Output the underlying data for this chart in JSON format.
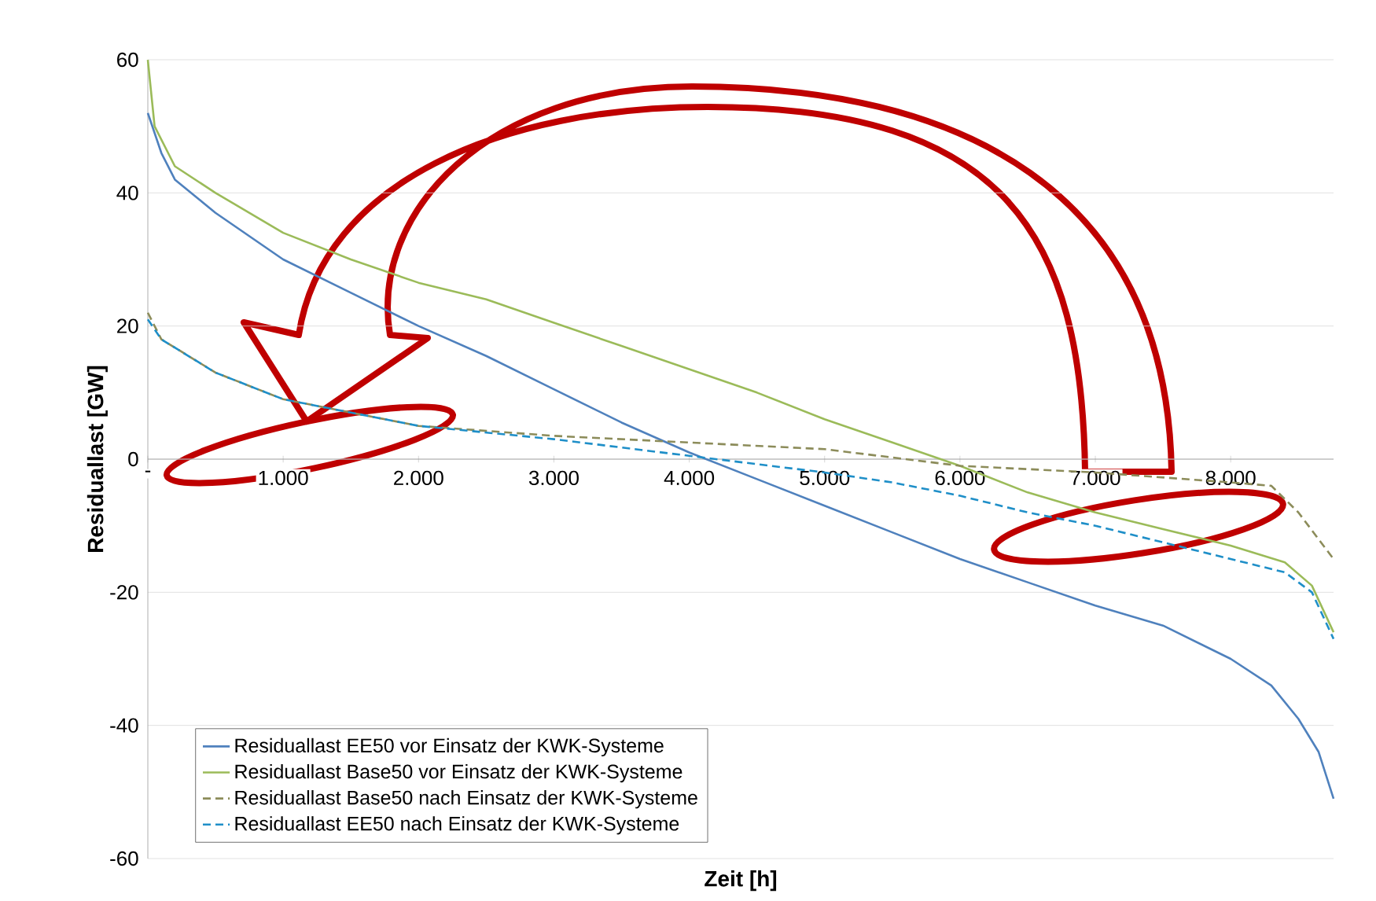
{
  "chart_data": {
    "type": "line",
    "xlabel": "Zeit [h]",
    "ylabel": "Residuallast  [GW]",
    "xlim": [
      0,
      8760
    ],
    "ylim": [
      -60,
      60
    ],
    "xticks": [
      {
        "value": 0,
        "label": "-"
      },
      {
        "value": 1000,
        "label": "1.000"
      },
      {
        "value": 2000,
        "label": "2.000"
      },
      {
        "value": 3000,
        "label": "3.000"
      },
      {
        "value": 4000,
        "label": "4.000"
      },
      {
        "value": 5000,
        "label": "5.000"
      },
      {
        "value": 6000,
        "label": "6.000"
      },
      {
        "value": 7000,
        "label": "7.000"
      },
      {
        "value": 8000,
        "label": "8.000"
      }
    ],
    "yticks": [
      -60,
      -40,
      -20,
      0,
      20,
      40,
      60
    ],
    "grid": "y",
    "legend": "bottom left",
    "series": [
      {
        "name": "Residuallast EE50 vor Einsatz der KWK-Systeme",
        "color": "#4f81bd",
        "line_style": "solid",
        "x": [
          0,
          100,
          200,
          500,
          1000,
          1500,
          2000,
          2500,
          3000,
          3500,
          4000,
          4500,
          5000,
          5500,
          6000,
          6500,
          7000,
          7500,
          8000,
          8300,
          8500,
          8650,
          8760
        ],
        "values": [
          52,
          46,
          42,
          37,
          30,
          25,
          20,
          15.5,
          10.5,
          5.5,
          1,
          -3,
          -7,
          -11,
          -15,
          -18.5,
          -22,
          -25,
          -30,
          -34,
          -39,
          -44,
          -51
        ]
      },
      {
        "name": "Residuallast Base50 vor Einsatz der KWK-Systeme",
        "color": "#9bbb59",
        "line_style": "solid",
        "x": [
          0,
          50,
          200,
          500,
          1000,
          1500,
          2000,
          2500,
          3000,
          3500,
          4000,
          4500,
          5000,
          5500,
          6000,
          6500,
          7000,
          7500,
          8000,
          8400,
          8600,
          8760
        ],
        "values": [
          60,
          50,
          44,
          40,
          34,
          30,
          26.5,
          24,
          20.5,
          17,
          13.5,
          10,
          6,
          2.5,
          -1,
          -5,
          -8,
          -10.5,
          -13,
          -15.5,
          -19,
          -26
        ]
      },
      {
        "name": "Residuallast Base50 nach Einsatz der KWK-Systeme",
        "color": "#8c8c5a",
        "line_style": "dashed",
        "x": [
          0,
          100,
          500,
          1000,
          1500,
          2000,
          3000,
          4000,
          5000,
          6000,
          7000,
          8000,
          8300,
          8500,
          8760
        ],
        "values": [
          22,
          18,
          13,
          9,
          7,
          5,
          3.5,
          2.5,
          1.5,
          -1,
          -2,
          -3.5,
          -4,
          -8,
          -15
        ]
      },
      {
        "name": "Residuallast EE50 nach Einsatz der KWK-Systeme",
        "color": "#1f8fc8",
        "line_style": "dashed",
        "x": [
          0,
          100,
          500,
          1000,
          1500,
          2000,
          3000,
          4000,
          5000,
          5500,
          6000,
          6500,
          7000,
          7500,
          8000,
          8400,
          8600,
          8760
        ],
        "values": [
          21,
          18,
          13,
          9,
          7,
          5,
          3,
          0.5,
          -2,
          -3.5,
          -5.5,
          -8,
          -10,
          -12.5,
          -15,
          -17,
          -20,
          -27
        ]
      }
    ]
  }
}
